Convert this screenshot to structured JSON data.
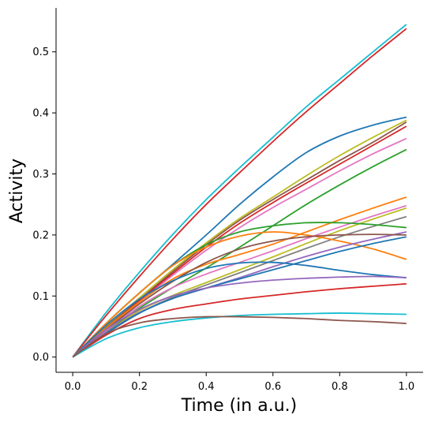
{
  "chart_data": {
    "type": "line",
    "title": "",
    "xlabel": "Time (in a.u.)",
    "ylabel": "Activity",
    "xlim": [
      -0.05,
      1.05
    ],
    "ylim": [
      -0.025,
      0.572
    ],
    "xticks": [
      0.0,
      0.2,
      0.4,
      0.6,
      0.8,
      1.0
    ],
    "xtick_labels": [
      "0.0",
      "0.2",
      "0.4",
      "0.6",
      "0.8",
      "1.0"
    ],
    "yticks": [
      0.0,
      0.1,
      0.2,
      0.3,
      0.4,
      0.5
    ],
    "ytick_labels": [
      "0.0",
      "0.1",
      "0.2",
      "0.3",
      "0.4",
      "0.5"
    ],
    "grid": false,
    "legend": "none",
    "x": [
      0,
      0.1,
      0.2,
      0.3,
      0.4,
      0.5,
      0.6,
      0.7,
      0.8,
      0.9,
      1.0
    ],
    "series": [
      {
        "color": "#17becf",
        "values": [
          0,
          0.073,
          0.139,
          0.201,
          0.258,
          0.31,
          0.36,
          0.41,
          0.455,
          0.5,
          0.545
        ]
      },
      {
        "color": "#d62728",
        "values": [
          0,
          0.068,
          0.132,
          0.193,
          0.25,
          0.302,
          0.353,
          0.402,
          0.448,
          0.494,
          0.538
        ]
      },
      {
        "color": "#1f77b4",
        "values": [
          0,
          0.055,
          0.105,
          0.152,
          0.2,
          0.25,
          0.295,
          0.335,
          0.362,
          0.38,
          0.393
        ]
      },
      {
        "color": "#bcbd22",
        "values": [
          0,
          0.05,
          0.097,
          0.143,
          0.187,
          0.227,
          0.262,
          0.297,
          0.33,
          0.36,
          0.388
        ]
      },
      {
        "color": "#8c564b",
        "values": [
          0,
          0.048,
          0.094,
          0.14,
          0.184,
          0.224,
          0.258,
          0.29,
          0.322,
          0.352,
          0.385
        ]
      },
      {
        "color": "#d62728",
        "values": [
          0,
          0.047,
          0.092,
          0.137,
          0.18,
          0.219,
          0.253,
          0.285,
          0.316,
          0.347,
          0.378
        ]
      },
      {
        "color": "#e377c2",
        "values": [
          0,
          0.046,
          0.09,
          0.134,
          0.175,
          0.212,
          0.245,
          0.275,
          0.305,
          0.333,
          0.358
        ]
      },
      {
        "color": "#2ca02c",
        "values": [
          0,
          0.042,
          0.08,
          0.114,
          0.146,
          0.18,
          0.215,
          0.25,
          0.282,
          0.312,
          0.34
        ]
      },
      {
        "color": "#ff7f0e",
        "values": [
          0,
          0.047,
          0.09,
          0.128,
          0.152,
          0.168,
          0.185,
          0.205,
          0.225,
          0.244,
          0.262
        ]
      },
      {
        "color": "#e377c2",
        "values": [
          0,
          0.043,
          0.083,
          0.114,
          0.136,
          0.155,
          0.174,
          0.194,
          0.213,
          0.231,
          0.248
        ]
      },
      {
        "color": "#bcbd22",
        "values": [
          0,
          0.04,
          0.076,
          0.101,
          0.122,
          0.143,
          0.164,
          0.186,
          0.207,
          0.226,
          0.244
        ]
      },
      {
        "color": "#7f7f7f",
        "values": [
          0,
          0.038,
          0.072,
          0.098,
          0.118,
          0.138,
          0.158,
          0.178,
          0.197,
          0.214,
          0.23
        ]
      },
      {
        "color": "#2ca02c",
        "values": [
          0,
          0.055,
          0.105,
          0.15,
          0.184,
          0.205,
          0.215,
          0.22,
          0.22,
          0.217,
          0.212
        ]
      },
      {
        "color": "#ff7f0e",
        "values": [
          0,
          0.055,
          0.105,
          0.15,
          0.18,
          0.198,
          0.205,
          0.2,
          0.19,
          0.177,
          0.16
        ]
      },
      {
        "color": "#9467bd",
        "values": [
          0,
          0.04,
          0.073,
          0.096,
          0.113,
          0.13,
          0.148,
          0.165,
          0.18,
          0.193,
          0.205
        ]
      },
      {
        "color": "#8c564b",
        "values": [
          0,
          0.045,
          0.087,
          0.124,
          0.155,
          0.177,
          0.19,
          0.197,
          0.2,
          0.201,
          0.2
        ]
      },
      {
        "color": "#1f77b4",
        "values": [
          0,
          0.039,
          0.072,
          0.096,
          0.113,
          0.128,
          0.143,
          0.158,
          0.173,
          0.186,
          0.197
        ]
      },
      {
        "color": "#1f77b4",
        "values": [
          0,
          0.052,
          0.095,
          0.125,
          0.145,
          0.154,
          0.155,
          0.15,
          0.142,
          0.135,
          0.13
        ]
      },
      {
        "color": "#9467bd",
        "values": [
          0,
          0.045,
          0.078,
          0.1,
          0.113,
          0.121,
          0.126,
          0.129,
          0.131,
          0.132,
          0.13
        ]
      },
      {
        "color": "#d62728",
        "values": [
          0,
          0.036,
          0.063,
          0.078,
          0.087,
          0.095,
          0.101,
          0.107,
          0.112,
          0.116,
          0.12
        ]
      },
      {
        "color": "#17becf",
        "values": [
          0,
          0.03,
          0.048,
          0.058,
          0.064,
          0.068,
          0.07,
          0.071,
          0.072,
          0.071,
          0.07
        ]
      },
      {
        "color": "#8c564b",
        "values": [
          0,
          0.038,
          0.056,
          0.063,
          0.066,
          0.066,
          0.065,
          0.063,
          0.06,
          0.058,
          0.055
        ]
      }
    ]
  }
}
